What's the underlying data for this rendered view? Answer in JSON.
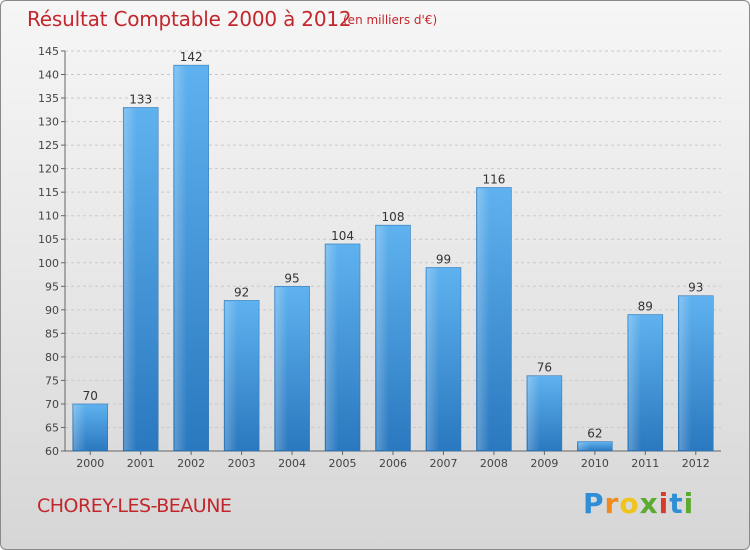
{
  "chart_data": {
    "type": "bar",
    "title": "Résultat Comptable 2000 à 2012",
    "subtitle": "(en milliers d'€)",
    "categories": [
      "2000",
      "2001",
      "2002",
      "2003",
      "2004",
      "2005",
      "2006",
      "2007",
      "2008",
      "2009",
      "2010",
      "2011",
      "2012"
    ],
    "values": [
      70,
      133,
      142,
      92,
      95,
      104,
      108,
      99,
      116,
      76,
      62,
      89,
      93
    ],
    "ylim": [
      60,
      145
    ],
    "yticks": [
      60,
      65,
      70,
      75,
      80,
      85,
      90,
      95,
      100,
      105,
      110,
      115,
      120,
      125,
      130,
      135,
      140,
      145
    ],
    "xlabel": "",
    "ylabel": "",
    "grid": true,
    "bar_color": "#3a8fd8"
  },
  "footer": {
    "place": "CHOREY-LES-BEAUNE",
    "logo_letters": [
      "P",
      "r",
      "o",
      "x",
      "i",
      "t",
      "i"
    ]
  }
}
